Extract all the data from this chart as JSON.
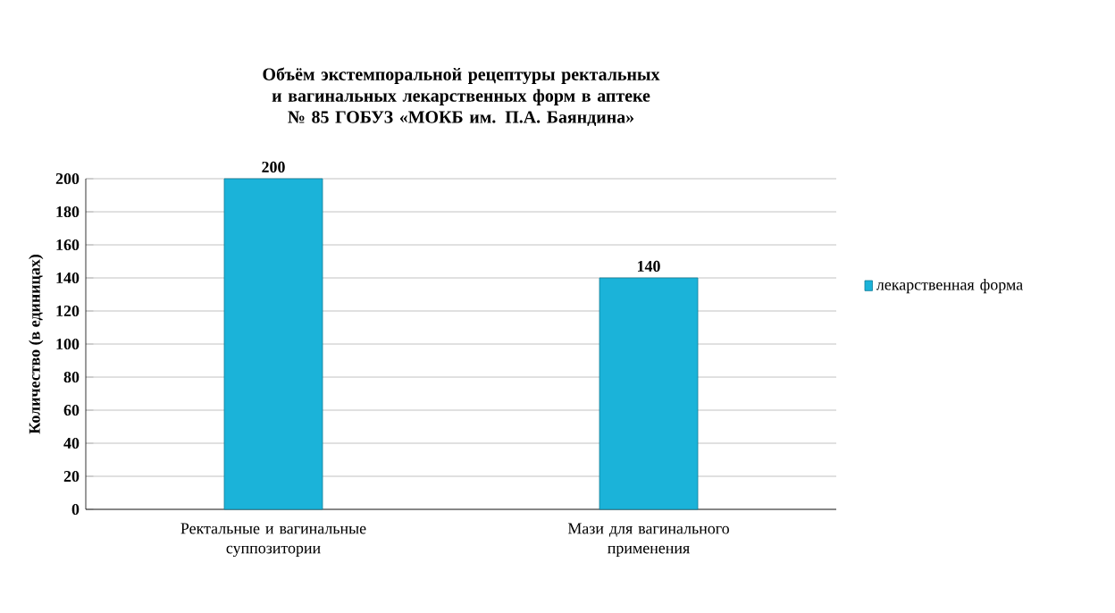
{
  "chart_data": {
    "type": "bar",
    "title": "Объём экстемпоральной рецептуры ректальных и вагинальных лекарственных форм в аптеке № 85 ГОБУЗ «МОКБ им. П.А. Баяндина»",
    "ylabel": "Количество (в единицах)",
    "categories": [
      "Ректальные и вагинальные суппозитории",
      "Мази для вагинального применения"
    ],
    "series": [
      {
        "name": "лекарственная форма",
        "color": "#1bb3d9",
        "values": [
          200,
          140
        ]
      }
    ],
    "ylim": [
      0,
      200
    ],
    "yticks": [
      0,
      20,
      40,
      60,
      80,
      100,
      120,
      140,
      160,
      180,
      200
    ],
    "data_labels": true,
    "grid": "y",
    "legend": "right"
  }
}
